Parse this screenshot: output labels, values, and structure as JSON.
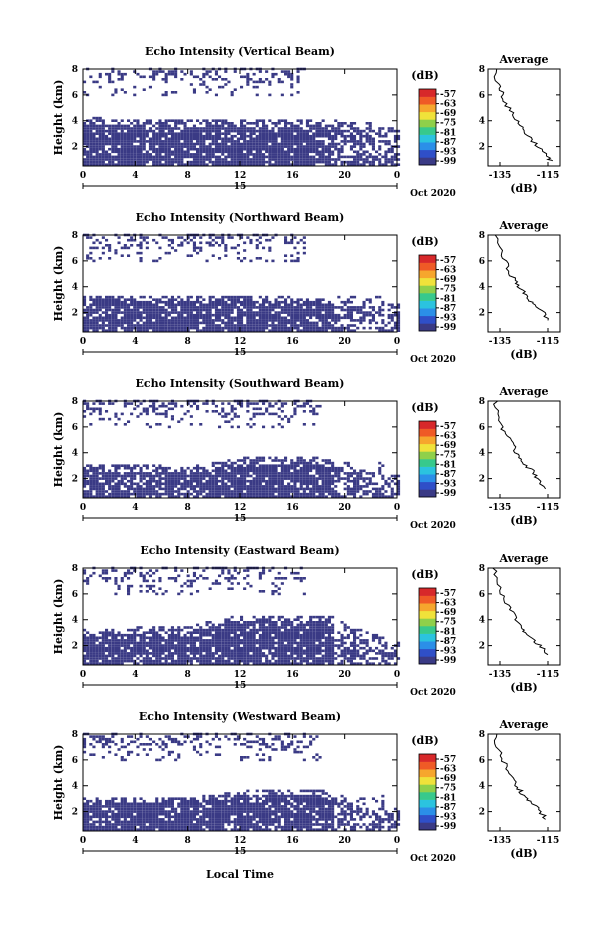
{
  "chart_data": {
    "type": "heatmap",
    "colorbar": {
      "unit_label": "(dB)",
      "tick_labels": [
        "-57",
        "-63",
        "-69",
        "-75",
        "-81",
        "-87",
        "-93",
        "-99"
      ],
      "colors": [
        "#3a3a85",
        "#2f4fc8",
        "#2b8fe8",
        "#2bc3df",
        "#37c98c",
        "#8fd04a",
        "#f0e23a",
        "#f6a62d",
        "#ef5a26",
        "#d7282a"
      ]
    },
    "shared": {
      "x_ticks": [
        "0",
        "4",
        "8",
        "12",
        "16",
        "20",
        "0"
      ],
      "x_span_label": "15",
      "date_label": "Oct 2020",
      "ylabel": "Height (km)",
      "y_ticks": [
        "2",
        "4",
        "6",
        "8"
      ],
      "ylim": [
        0.5,
        8
      ],
      "xlim": [
        0,
        24
      ],
      "avg_title": "Average",
      "avg_xlabel": "(dB)",
      "avg_x_ticks": [
        "-135",
        "-115"
      ],
      "avg_xlim": [
        -140,
        -110
      ],
      "xlabel": "Local Time"
    },
    "panels": [
      {
        "title": "Echo Intensity (Vertical Beam)",
        "low_layer": [
          [
            0,
            4.2
          ],
          [
            4,
            3.9
          ],
          [
            8,
            4.0
          ],
          [
            12,
            4.0
          ],
          [
            16,
            4.0
          ],
          [
            19,
            4.0
          ],
          [
            22,
            3.8
          ],
          [
            24,
            3.2
          ]
        ],
        "upper_band": [
          0,
          17
        ],
        "average": [
          [
            -137,
            8
          ],
          [
            -136,
            6.8
          ],
          [
            -134,
            6.2
          ],
          [
            -133,
            5.5
          ],
          [
            -131,
            4.8
          ],
          [
            -128,
            4.1
          ],
          [
            -126,
            3.5
          ],
          [
            -124,
            3.0
          ],
          [
            -121,
            2.4
          ],
          [
            -118,
            1.8
          ],
          [
            -115,
            1.1
          ],
          [
            -113,
            0.9
          ]
        ]
      },
      {
        "title": "Echo Intensity (Northward Beam)",
        "low_layer": [
          [
            0,
            3.3
          ],
          [
            4,
            3.3
          ],
          [
            8,
            3.2
          ],
          [
            12,
            3.3
          ],
          [
            16,
            3.1
          ],
          [
            19,
            3.0
          ],
          [
            22,
            2.7
          ],
          [
            24,
            2.5
          ]
        ],
        "upper_band": [
          0,
          17
        ],
        "average": [
          [
            -136,
            8
          ],
          [
            -135,
            6.8
          ],
          [
            -133,
            6.0
          ],
          [
            -131,
            5.2
          ],
          [
            -129,
            4.5
          ],
          [
            -127,
            4.0
          ],
          [
            -125,
            3.5
          ],
          [
            -123,
            3.0
          ],
          [
            -120,
            2.6
          ],
          [
            -117,
            2.0
          ],
          [
            -115,
            1.4
          ]
        ]
      },
      {
        "title": "Echo Intensity (Southward Beam)",
        "low_layer": [
          [
            0,
            2.9
          ],
          [
            4,
            3.0
          ],
          [
            8,
            2.8
          ],
          [
            12,
            3.5
          ],
          [
            16,
            3.6
          ],
          [
            18,
            3.5
          ],
          [
            22,
            2.4
          ],
          [
            24,
            2.2
          ]
        ],
        "upper_band": [
          0,
          18
        ],
        "average": [
          [
            -137,
            8
          ],
          [
            -136,
            7.0
          ],
          [
            -134,
            6.0
          ],
          [
            -132,
            5.3
          ],
          [
            -130,
            4.6
          ],
          [
            -128,
            4.0
          ],
          [
            -126,
            3.5
          ],
          [
            -124,
            3.0
          ],
          [
            -121,
            2.5
          ],
          [
            -119,
            2.0
          ],
          [
            -116,
            1.2
          ]
        ]
      },
      {
        "title": "Echo Intensity (Eastward Beam)",
        "low_layer": [
          [
            0,
            3.3
          ],
          [
            4,
            3.3
          ],
          [
            8,
            3.4
          ],
          [
            12,
            4.3
          ],
          [
            16,
            4.2
          ],
          [
            19,
            4.1
          ],
          [
            22,
            2.8
          ],
          [
            24,
            2.5
          ]
        ],
        "upper_band": [
          0,
          17
        ],
        "average": [
          [
            -137,
            8
          ],
          [
            -136,
            7.0
          ],
          [
            -134,
            6.0
          ],
          [
            -132,
            5.3
          ],
          [
            -130,
            4.6
          ],
          [
            -128,
            4.0
          ],
          [
            -126,
            3.4
          ],
          [
            -124,
            3.0
          ],
          [
            -121,
            2.4
          ],
          [
            -118,
            1.9
          ],
          [
            -115,
            1.3
          ]
        ]
      },
      {
        "title": "Echo Intensity (Westward Beam)",
        "low_layer": [
          [
            0,
            3.1
          ],
          [
            4,
            3.1
          ],
          [
            8,
            3.0
          ],
          [
            12,
            3.5
          ],
          [
            16,
            3.7
          ],
          [
            18,
            3.6
          ],
          [
            22,
            2.3
          ],
          [
            24,
            2.2
          ]
        ],
        "upper_band": [
          0,
          18
        ],
        "average": [
          [
            -137,
            8
          ],
          [
            -136,
            7.0
          ],
          [
            -134,
            6.1
          ],
          [
            -132,
            5.3
          ],
          [
            -130,
            4.6
          ],
          [
            -128,
            4.0
          ],
          [
            -126,
            3.5
          ],
          [
            -124,
            3.0
          ],
          [
            -121,
            2.6
          ],
          [
            -118,
            2.0
          ],
          [
            -116,
            1.4
          ]
        ]
      }
    ]
  }
}
